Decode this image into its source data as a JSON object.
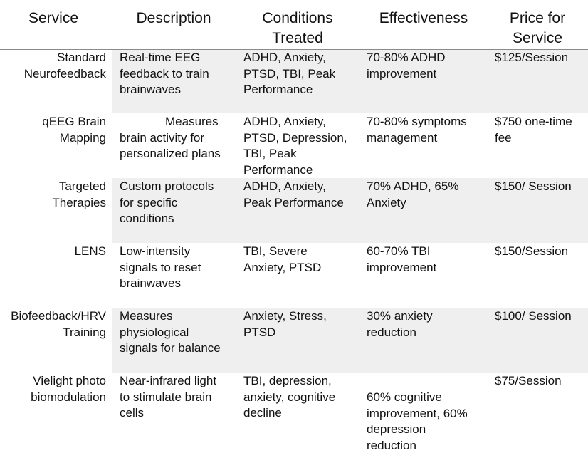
{
  "headers": {
    "service": "Service",
    "description": "Description",
    "conditions_line1": "Conditions",
    "conditions_line2": "Treated",
    "effectiveness": "Effectiveness",
    "price_line1": "Price for",
    "price_line2": "Service"
  },
  "rows": [
    {
      "service": [
        "Standard",
        "Neurofeedback"
      ],
      "description": [
        "Real-time EEG",
        "feedback to train",
        "brainwaves"
      ],
      "conditions": [
        "ADHD, Anxiety,",
        "PTSD, TBI, Peak",
        "Performance"
      ],
      "effectiveness": [
        "70-80% ADHD",
        "improvement"
      ],
      "price": [
        "$125/Session"
      ]
    },
    {
      "service": [
        "qEEG Brain",
        "Mapping"
      ],
      "description": [
        "Measures",
        "brain activity for",
        "personalized plans"
      ],
      "conditions": [
        "ADHD, Anxiety,",
        "PTSD, Depression,",
        "TBI, Peak",
        "Performance"
      ],
      "effectiveness": [
        "70-80% symptoms",
        "management"
      ],
      "price": [
        "$750 one-time",
        "fee"
      ]
    },
    {
      "service": [
        "Targeted",
        "Therapies"
      ],
      "description": [
        "Custom protocols",
        "for specific",
        "conditions"
      ],
      "conditions": [
        "ADHD, Anxiety,",
        "Peak Performance"
      ],
      "effectiveness": [
        "70% ADHD, 65%",
        "Anxiety"
      ],
      "price": [
        "$150/ Session"
      ]
    },
    {
      "service": [
        "LENS"
      ],
      "description": [
        "Low-intensity",
        "signals to reset",
        "brainwaves"
      ],
      "conditions": [
        "TBI, Severe",
        "Anxiety, PTSD"
      ],
      "effectiveness": [
        "60-70% TBI",
        "improvement"
      ],
      "price": [
        "$150/Session"
      ]
    },
    {
      "service": [
        "Biofeedback/HRV",
        "Training"
      ],
      "description": [
        "Measures",
        "physiological",
        "signals for balance"
      ],
      "conditions": [
        "Anxiety, Stress,",
        "PTSD"
      ],
      "effectiveness": [
        "30% anxiety",
        "reduction"
      ],
      "price": [
        "$100/ Session"
      ]
    },
    {
      "service": [
        "Vielight photo",
        "biomodulation"
      ],
      "description": [
        "Near-infrared light",
        "to stimulate brain",
        "cells"
      ],
      "conditions": [
        "TBI, depression,",
        "anxiety, cognitive",
        "decline"
      ],
      "effectiveness": [
        "60% cognitive",
        "improvement, 60%",
        "depression",
        "reduction"
      ],
      "price": [
        "$75/Session"
      ]
    }
  ]
}
